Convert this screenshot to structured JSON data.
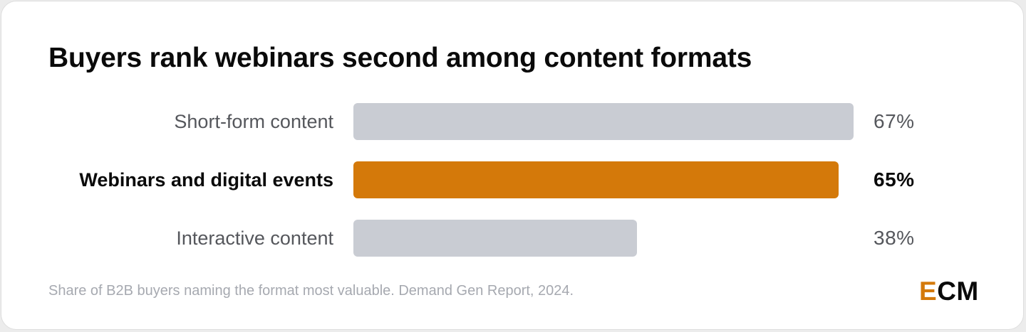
{
  "title": "Buyers rank webinars second among content formats",
  "note": "Share of B2B buyers naming the format most valuable. Demand Gen Report, 2024.",
  "logo": {
    "text": "ECM",
    "accent_letter": "E",
    "rest": "CM"
  },
  "colors": {
    "highlight": "#d4790a",
    "muted_bar": "#c9ccd3",
    "muted_text": "#55575c",
    "strong_text": "#0a0a0a",
    "note_text": "#a6a9b0"
  },
  "chart_data": {
    "type": "bar",
    "orientation": "horizontal",
    "title": "Buyers rank webinars second among content formats",
    "categories": [
      "Short-form content",
      "Webinars and digital events",
      "Interactive content"
    ],
    "values": [
      67,
      65,
      38
    ],
    "value_labels": [
      "67%",
      "65%",
      "38%"
    ],
    "highlighted": [
      false,
      true,
      false
    ],
    "unit": "%",
    "xlim": [
      0,
      67
    ],
    "grid": false,
    "legend": "none"
  }
}
